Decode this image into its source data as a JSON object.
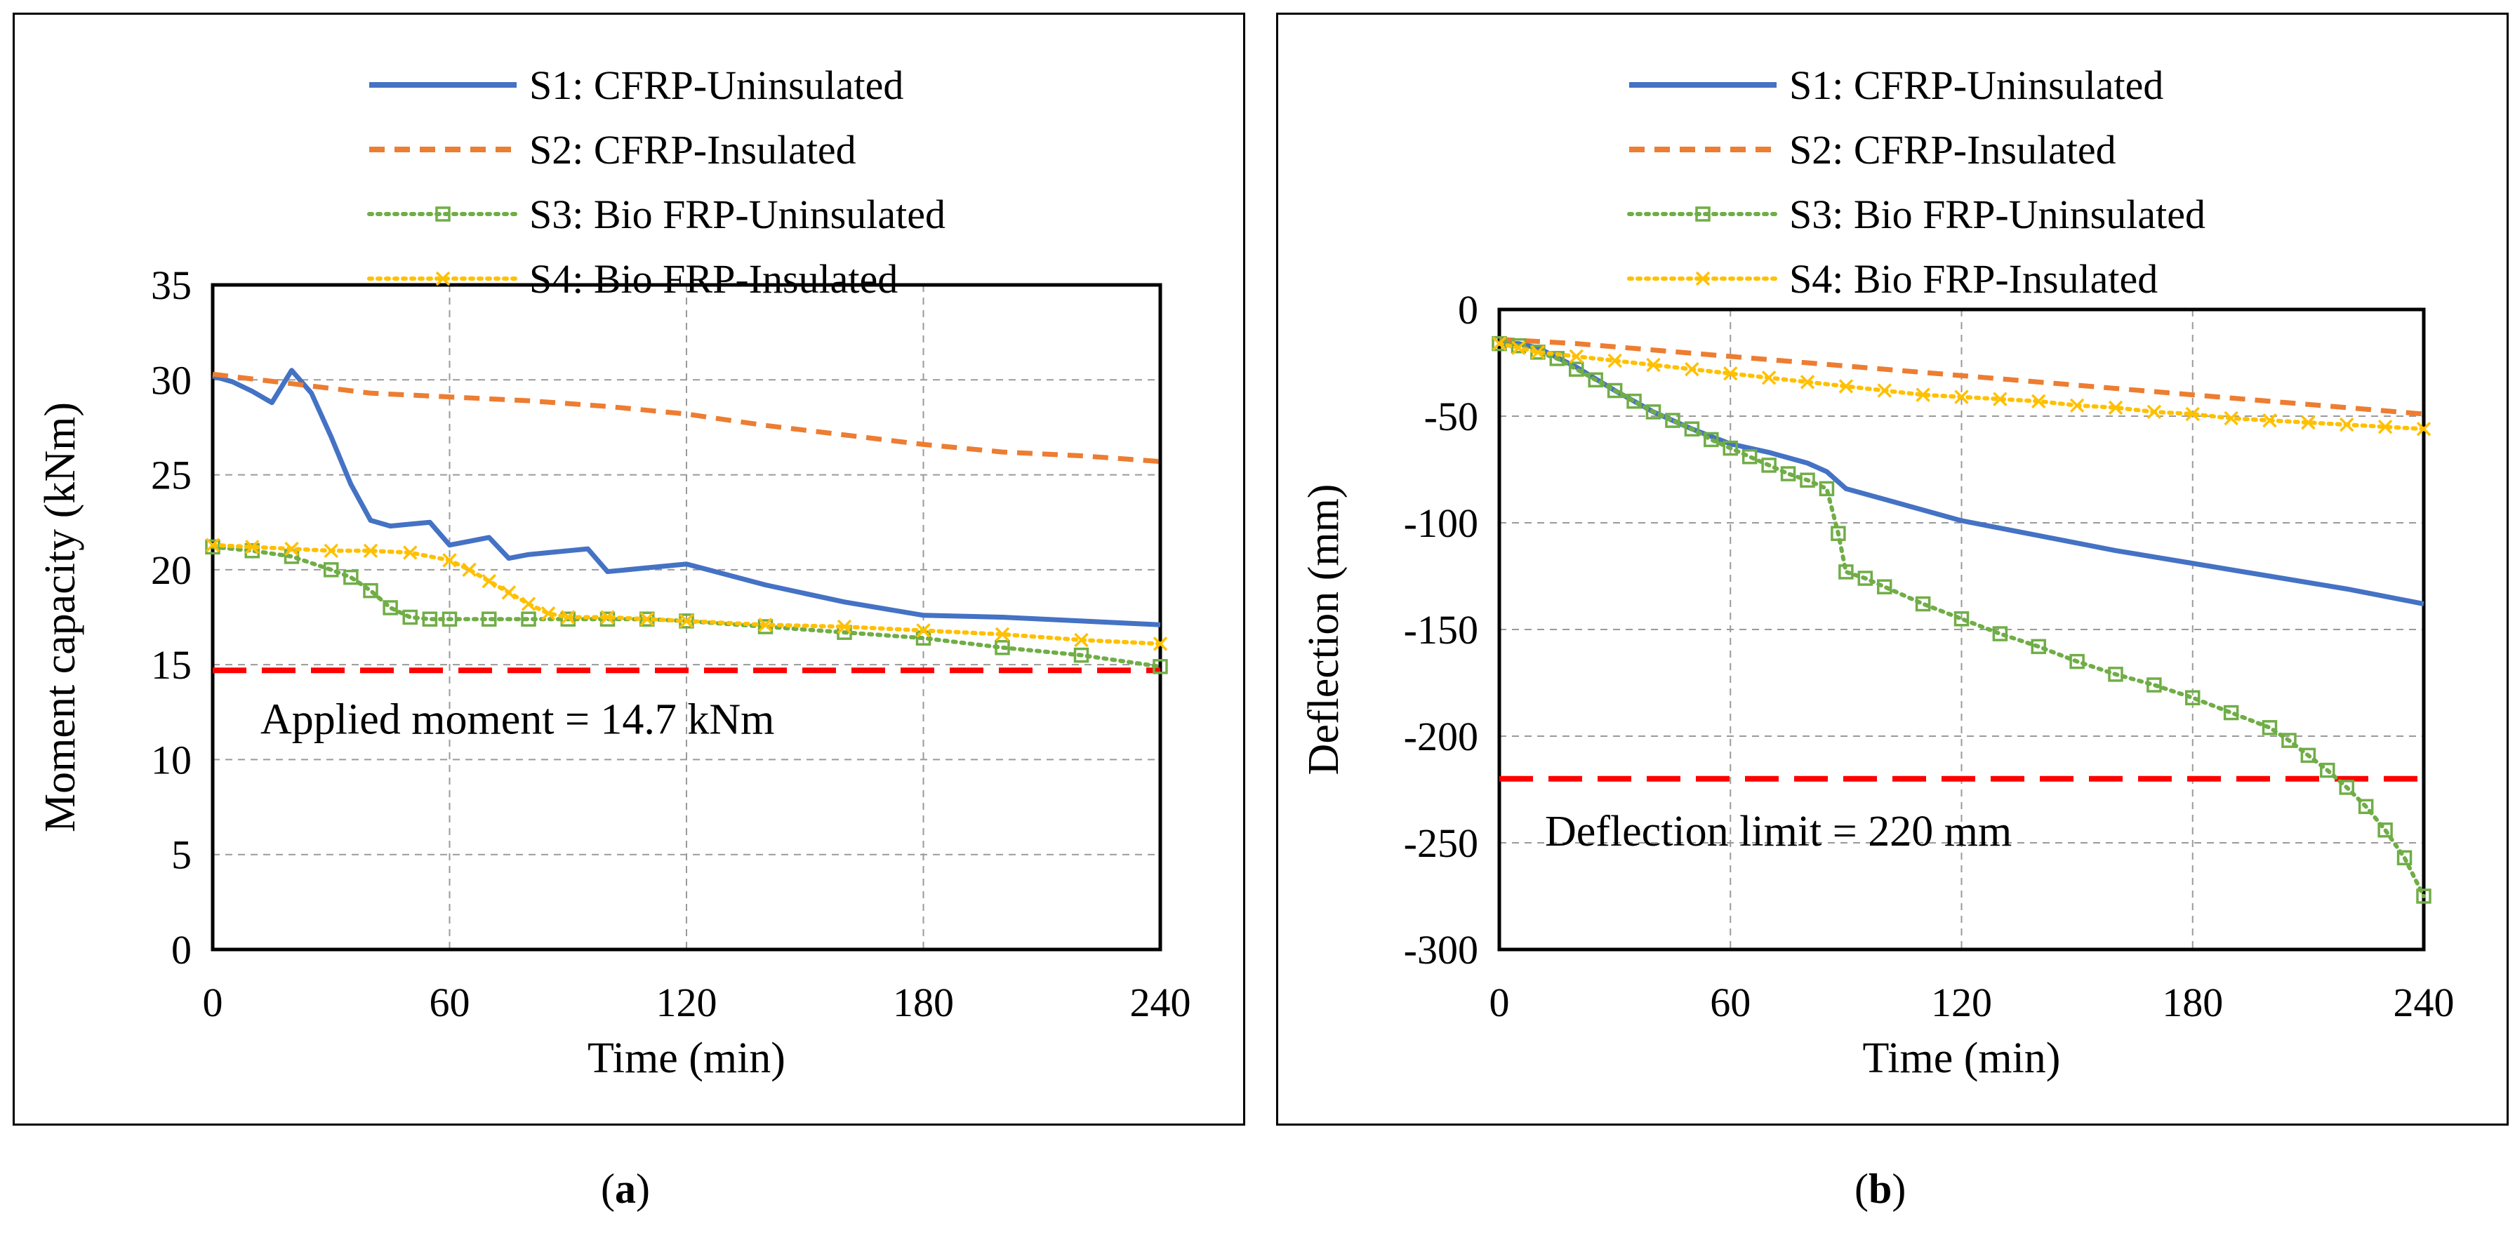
{
  "chart_data": [
    {
      "id": "a",
      "type": "line",
      "caption": "a",
      "xlabel": "Time (min)",
      "ylabel": "Moment capacity (kNm)",
      "xlim": [
        0,
        240
      ],
      "ylim": [
        0,
        35
      ],
      "xticks": [
        0,
        60,
        120,
        180,
        240
      ],
      "yticks": [
        0,
        5,
        10,
        15,
        20,
        25,
        30,
        35
      ],
      "grid": true,
      "legend": "top",
      "annotation": "Applied moment = 14.7 kNm",
      "limit_line": {
        "y": 14.7,
        "color": "#ff0000"
      },
      "series": [
        {
          "name": "S1: CFRP-Uninsulated",
          "color": "#4472c4",
          "style": "solid",
          "x": [
            0,
            5,
            10,
            15,
            20,
            25,
            30,
            35,
            40,
            45,
            50,
            55,
            60,
            65,
            70,
            75,
            80,
            85,
            90,
            95,
            100,
            110,
            120,
            140,
            160,
            180,
            200,
            220,
            240
          ],
          "y": [
            30.2,
            29.9,
            29.4,
            28.8,
            30.5,
            29.3,
            27.0,
            24.5,
            22.6,
            22.3,
            22.4,
            22.5,
            21.3,
            21.5,
            21.7,
            20.6,
            20.8,
            20.9,
            21.0,
            21.1,
            19.9,
            20.1,
            20.3,
            19.2,
            18.3,
            17.6,
            17.5,
            17.3,
            17.1
          ]
        },
        {
          "name": "S2: CFRP-Insulated",
          "color": "#ed7d31",
          "style": "dashed",
          "x": [
            0,
            20,
            40,
            60,
            80,
            100,
            120,
            140,
            160,
            180,
            200,
            220,
            240
          ],
          "y": [
            30.3,
            29.8,
            29.3,
            29.1,
            28.9,
            28.6,
            28.2,
            27.6,
            27.1,
            26.6,
            26.2,
            26.0,
            25.7
          ]
        },
        {
          "name": "S3: Bio FRP-Uninsulated",
          "color": "#70ad47",
          "style": "dotted",
          "marker": "square",
          "x": [
            0,
            10,
            20,
            30,
            35,
            40,
            45,
            50,
            55,
            60,
            70,
            80,
            90,
            100,
            110,
            120,
            140,
            160,
            180,
            200,
            220,
            240
          ],
          "y": [
            21.2,
            21.0,
            20.7,
            20.0,
            19.6,
            18.9,
            18.0,
            17.5,
            17.4,
            17.4,
            17.4,
            17.4,
            17.4,
            17.4,
            17.4,
            17.3,
            17.0,
            16.7,
            16.4,
            15.9,
            15.5,
            14.9
          ]
        },
        {
          "name": "S4: Bio FRP-Insulated",
          "color": "#ffc000",
          "style": "dotted",
          "marker": "x",
          "x": [
            0,
            10,
            20,
            30,
            40,
            50,
            60,
            65,
            70,
            75,
            80,
            85,
            90,
            100,
            110,
            120,
            140,
            160,
            180,
            200,
            220,
            240
          ],
          "y": [
            21.3,
            21.2,
            21.1,
            21.0,
            21.0,
            20.9,
            20.5,
            20.0,
            19.4,
            18.8,
            18.2,
            17.7,
            17.5,
            17.5,
            17.4,
            17.3,
            17.1,
            17.0,
            16.8,
            16.6,
            16.3,
            16.1
          ]
        }
      ]
    },
    {
      "id": "b",
      "type": "line",
      "caption": "b",
      "xlabel": "Time (min)",
      "ylabel": "Deflection (mm)",
      "xlim": [
        0,
        240
      ],
      "ylim": [
        -300,
        0
      ],
      "xticks": [
        0,
        60,
        120,
        180,
        240
      ],
      "yticks": [
        -300,
        -250,
        -200,
        -150,
        -100,
        -50,
        0
      ],
      "grid": true,
      "legend": "top",
      "annotation": "Deflection limit = 220 mm",
      "limit_line": {
        "y": -220,
        "color": "#ff0000"
      },
      "series": [
        {
          "name": "S1: CFRP-Uninsulated",
          "color": "#4472c4",
          "style": "solid",
          "x": [
            0,
            5,
            10,
            20,
            30,
            40,
            50,
            60,
            70,
            80,
            85,
            90,
            100,
            120,
            140,
            160,
            180,
            200,
            220,
            240
          ],
          "y": [
            -16,
            -16,
            -18,
            -27,
            -38,
            -48,
            -56,
            -63,
            -67,
            -72,
            -76,
            -84,
            -89,
            -99,
            -106,
            -113,
            -119,
            -125,
            -131,
            -138
          ]
        },
        {
          "name": "S2: CFRP-Insulated",
          "color": "#ed7d31",
          "style": "dashed",
          "x": [
            0,
            20,
            40,
            60,
            80,
            100,
            120,
            140,
            160,
            180,
            200,
            220,
            240
          ],
          "y": [
            -14,
            -16,
            -19,
            -22,
            -25,
            -28,
            -31,
            -34,
            -37,
            -40,
            -43,
            -46,
            -49
          ]
        },
        {
          "name": "S3: Bio FRP-Uninsulated",
          "color": "#70ad47",
          "style": "dotted",
          "marker": "square",
          "x": [
            0,
            5,
            10,
            15,
            20,
            25,
            30,
            35,
            40,
            45,
            50,
            55,
            60,
            65,
            70,
            75,
            80,
            85,
            88,
            90,
            95,
            100,
            110,
            120,
            130,
            140,
            150,
            160,
            170,
            180,
            190,
            200,
            205,
            210,
            215,
            220,
            225,
            230,
            235,
            240
          ],
          "y": [
            -16,
            -17,
            -20,
            -23,
            -28,
            -33,
            -38,
            -43,
            -48,
            -52,
            -56,
            -61,
            -65,
            -69,
            -73,
            -77,
            -80,
            -84,
            -105,
            -123,
            -126,
            -130,
            -138,
            -145,
            -152,
            -158,
            -165,
            -171,
            -176,
            -182,
            -189,
            -196,
            -202,
            -209,
            -216,
            -224,
            -233,
            -244,
            -257,
            -275
          ]
        },
        {
          "name": "S4: Bio FRP-Insulated",
          "color": "#ffc000",
          "style": "dotted",
          "marker": "x",
          "x": [
            0,
            5,
            10,
            20,
            30,
            40,
            50,
            60,
            70,
            80,
            90,
            100,
            110,
            120,
            130,
            140,
            150,
            160,
            170,
            180,
            190,
            200,
            210,
            220,
            230,
            240
          ],
          "y": [
            -16,
            -18,
            -20,
            -22,
            -24,
            -26,
            -28,
            -30,
            -32,
            -34,
            -36,
            -38,
            -40,
            -41,
            -42,
            -43,
            -45,
            -46,
            -48,
            -49,
            -51,
            -52,
            -53,
            -54,
            -55,
            -56
          ]
        }
      ]
    }
  ]
}
